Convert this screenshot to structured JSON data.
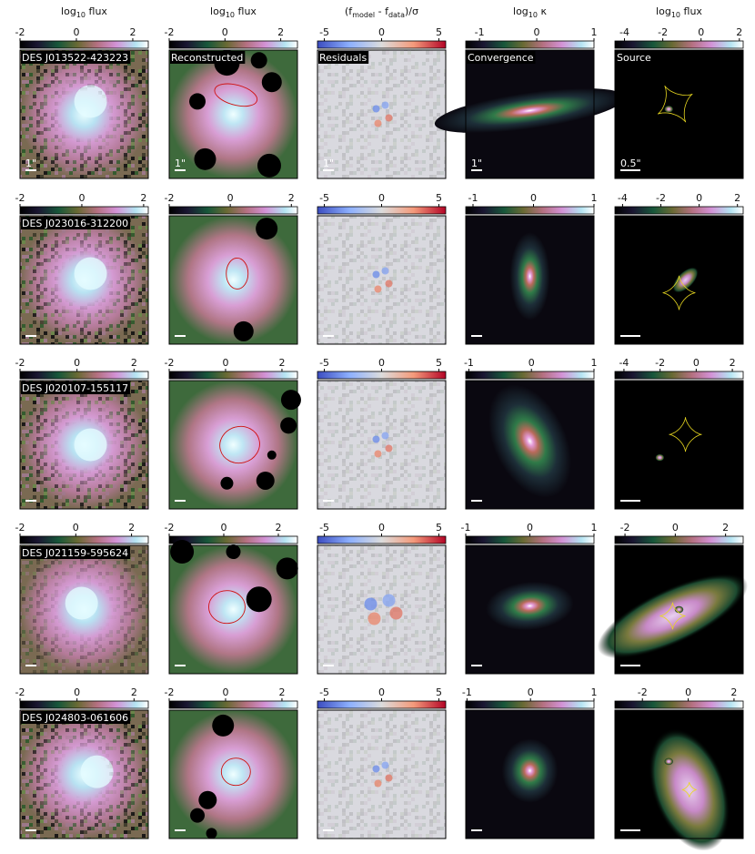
{
  "columns": [
    {
      "header": [
        "log",
        "10",
        " flux"
      ]
    },
    {
      "header": [
        "log",
        "10",
        " flux"
      ]
    },
    {
      "header": [
        "(f",
        "model",
        " - f",
        "data",
        ")/σ"
      ]
    },
    {
      "header": [
        "log",
        "10",
        " κ"
      ]
    },
    {
      "header": [
        "log",
        "10",
        " flux"
      ]
    }
  ],
  "rows": [
    {
      "name": "DES J013522-423223",
      "labels": [
        "Reconstructed",
        "Residuals",
        "Convergence",
        "Source"
      ],
      "scale_labels": [
        "1\"",
        "1\"",
        "1\"",
        "1\"",
        "0.5\""
      ],
      "colorbars": [
        {
          "lim": [
            -2,
            2.55
          ],
          "ticks": [
            -2,
            0,
            2
          ]
        },
        {
          "lim": [
            -2,
            2.6
          ],
          "ticks": [
            -2,
            0,
            2
          ]
        },
        {
          "lim": [
            -5.6,
            5.6
          ],
          "ticks": [
            -5,
            0,
            5
          ]
        },
        {
          "lim": [
            -1.24,
            1
          ],
          "ticks": [
            -1,
            0,
            1
          ]
        },
        {
          "lim": [
            -4.5,
            2.2
          ],
          "ticks": [
            -4,
            -2,
            0,
            2
          ]
        }
      ]
    },
    {
      "name": "DES J023016-312200",
      "colorbars": [
        {
          "lim": [
            -2,
            2.15
          ],
          "ticks": [
            -2,
            0,
            2
          ]
        },
        {
          "lim": [
            -2,
            2.2
          ],
          "ticks": [
            -2,
            0,
            2
          ]
        },
        {
          "lim": [
            -5.6,
            5.6
          ],
          "ticks": [
            -5,
            0,
            5
          ]
        },
        {
          "lim": [
            -1.12,
            1
          ],
          "ticks": [
            -1,
            0,
            1
          ]
        },
        {
          "lim": [
            -4.4,
            2.3
          ],
          "ticks": [
            -4,
            -2,
            0,
            2
          ]
        }
      ]
    },
    {
      "name": "DES J020107-155117",
      "colorbars": [
        {
          "lim": [
            -2,
            2.5
          ],
          "ticks": [
            -2,
            0,
            2
          ]
        },
        {
          "lim": [
            -2,
            2.55
          ],
          "ticks": [
            -2,
            0,
            2
          ]
        },
        {
          "lim": [
            -5.6,
            5.6
          ],
          "ticks": [
            -5,
            0,
            5
          ]
        },
        {
          "lim": [
            -1.05,
            1
          ],
          "ticks": [
            -1,
            0,
            1
          ]
        },
        {
          "lim": [
            -4.5,
            2.6
          ],
          "ticks": [
            -4,
            -2,
            0,
            2
          ]
        }
      ]
    },
    {
      "name": "DES J021159-595624",
      "colorbars": [
        {
          "lim": [
            -2,
            2.6
          ],
          "ticks": [
            -2,
            0,
            2
          ]
        },
        {
          "lim": [
            -2,
            2.7
          ],
          "ticks": [
            -2,
            0,
            2
          ]
        },
        {
          "lim": [
            -5.6,
            5.6
          ],
          "ticks": [
            -5,
            0,
            5
          ]
        },
        {
          "lim": [
            -1,
            1
          ],
          "ticks": [
            -1,
            0,
            1
          ]
        },
        {
          "lim": [
            -2.4,
            2.7
          ],
          "ticks": [
            -2,
            0,
            2
          ]
        }
      ]
    },
    {
      "name": "DES J024803-061606",
      "colorbars": [
        {
          "lim": [
            -2,
            2.5
          ],
          "ticks": [
            -2,
            0,
            2
          ]
        },
        {
          "lim": [
            -2,
            2.55
          ],
          "ticks": [
            -2,
            0,
            2
          ]
        },
        {
          "lim": [
            -5.6,
            5.6
          ],
          "ticks": [
            -5,
            0,
            5
          ]
        },
        {
          "lim": [
            -1.02,
            1
          ],
          "ticks": [
            -1,
            0,
            1
          ]
        },
        {
          "lim": [
            -3.2,
            2.4
          ],
          "ticks": [
            -2,
            0,
            2
          ]
        }
      ]
    }
  ]
}
